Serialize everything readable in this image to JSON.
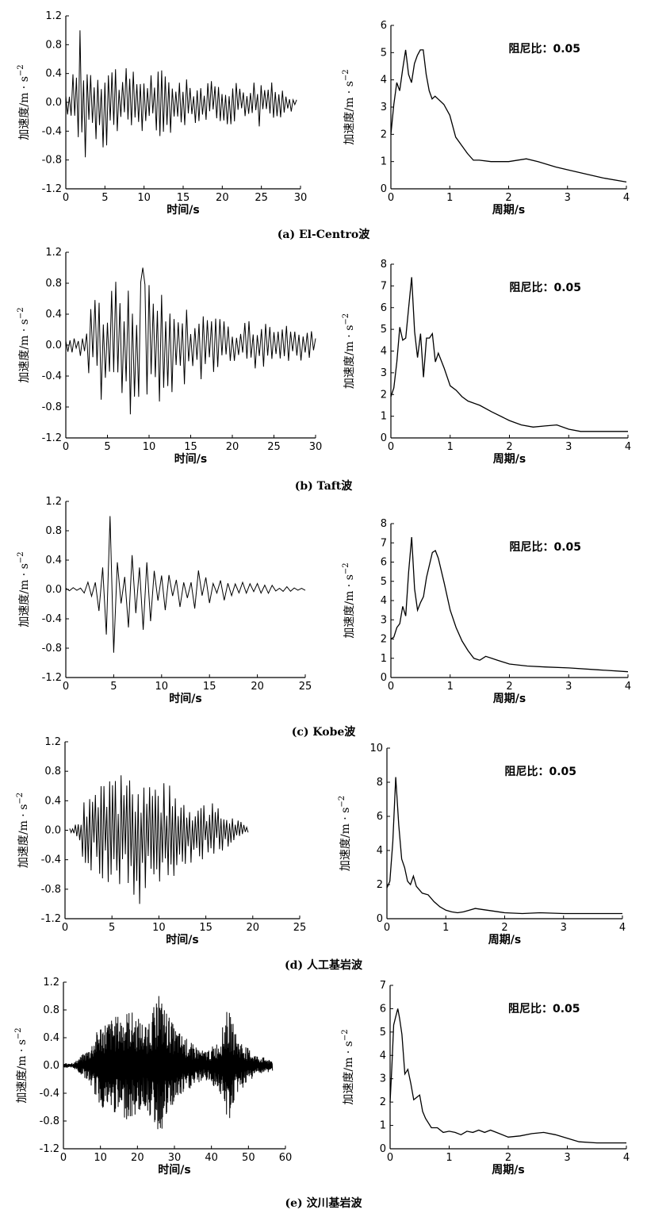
{
  "figure": {
    "captions": [
      "(a) El-Centro波",
      "(b) Taft波",
      "(c) Kobe波",
      "(d) 人工基岩波",
      "(e) 汶川基岩波"
    ]
  },
  "common": {
    "time_xlabel": "时间/s",
    "period_xlabel": "周期/s",
    "ylabel": "加速度/m · s",
    "ylabel_exp": "−2",
    "damping_label": "阻尼比：0.05"
  },
  "chart_data": [
    {
      "id": "a-time",
      "type": "line",
      "xlabel": "时间/s",
      "ylabel": "加速度/m · s−2",
      "xlim": [
        0,
        30
      ],
      "ylim": [
        -1.2,
        1.2
      ],
      "xticks": [
        0,
        5,
        10,
        15,
        20,
        25,
        30
      ],
      "yticks": [
        -1.2,
        -0.8,
        -0.4,
        0.0,
        0.4,
        0.8,
        1.2
      ],
      "envelope": {
        "t": [
          0,
          1,
          2,
          3,
          5,
          8,
          12,
          16,
          20,
          25,
          28,
          29.5
        ],
        "a": [
          0.1,
          0.45,
          1.0,
          0.6,
          0.7,
          0.45,
          0.5,
          0.3,
          0.3,
          0.35,
          0.2,
          0.1
        ]
      },
      "duration": 29.5,
      "freq": 2.2,
      "peak": {
        "t": 1.9,
        "a": 1.0
      }
    },
    {
      "id": "a-spec",
      "type": "line",
      "xlabel": "周期/s",
      "ylabel": "加速度/m · s−2",
      "xlim": [
        0,
        4
      ],
      "ylim": [
        0,
        6
      ],
      "xticks": [
        0,
        1,
        2,
        3,
        4
      ],
      "yticks": [
        0,
        1,
        2,
        3,
        4,
        5,
        6
      ],
      "annotation": "阻尼比：0.05",
      "x": [
        0.0,
        0.05,
        0.1,
        0.15,
        0.2,
        0.25,
        0.3,
        0.35,
        0.4,
        0.45,
        0.5,
        0.55,
        0.6,
        0.65,
        0.7,
        0.75,
        0.8,
        0.85,
        0.9,
        1.0,
        1.1,
        1.2,
        1.3,
        1.4,
        1.5,
        1.7,
        2.0,
        2.3,
        2.5,
        2.8,
        3.0,
        3.3,
        3.6,
        4.0
      ],
      "y": [
        2.0,
        3.1,
        3.9,
        3.6,
        4.4,
        5.1,
        4.2,
        3.9,
        4.6,
        4.9,
        5.1,
        5.1,
        4.2,
        3.6,
        3.3,
        3.4,
        3.3,
        3.2,
        3.1,
        2.7,
        1.9,
        1.6,
        1.3,
        1.05,
        1.05,
        1.0,
        1.0,
        1.1,
        1.0,
        0.8,
        0.7,
        0.55,
        0.4,
        0.25
      ]
    },
    {
      "id": "b-time",
      "type": "line",
      "xlabel": "时间/s",
      "ylabel": "加速度/m · s−2",
      "xlim": [
        0,
        30
      ],
      "ylim": [
        -1.2,
        1.2
      ],
      "xticks": [
        0,
        5,
        10,
        15,
        20,
        25,
        30
      ],
      "yticks": [
        -1.2,
        -0.8,
        -0.4,
        0.0,
        0.4,
        0.8,
        1.2
      ],
      "envelope": {
        "t": [
          0,
          2,
          4,
          6,
          9,
          12,
          15,
          18,
          22,
          26,
          29,
          30
        ],
        "a": [
          0.1,
          0.15,
          0.8,
          0.9,
          1.0,
          0.7,
          0.5,
          0.4,
          0.35,
          0.25,
          0.3,
          0.1
        ]
      },
      "duration": 30,
      "freq": 2.0,
      "peak": {
        "t": 9.3,
        "a": 1.0
      }
    },
    {
      "id": "b-spec",
      "type": "line",
      "xlabel": "周期/s",
      "ylabel": "加速度/m · s−2",
      "xlim": [
        0,
        4
      ],
      "ylim": [
        0,
        8
      ],
      "xticks": [
        0,
        1,
        2,
        3,
        4
      ],
      "yticks": [
        0,
        1,
        2,
        3,
        4,
        5,
        6,
        7,
        8
      ],
      "annotation": "阻尼比：0.05",
      "x": [
        0.0,
        0.05,
        0.1,
        0.15,
        0.2,
        0.25,
        0.3,
        0.35,
        0.4,
        0.45,
        0.5,
        0.55,
        0.6,
        0.65,
        0.7,
        0.75,
        0.8,
        0.9,
        1.0,
        1.1,
        1.2,
        1.3,
        1.5,
        1.7,
        2.0,
        2.2,
        2.4,
        2.6,
        2.8,
        3.0,
        3.2,
        3.5,
        4.0
      ],
      "y": [
        1.9,
        2.3,
        3.5,
        5.1,
        4.5,
        4.6,
        6.0,
        7.4,
        4.9,
        3.7,
        4.8,
        2.8,
        4.6,
        4.6,
        4.8,
        3.5,
        3.9,
        3.2,
        2.4,
        2.2,
        1.9,
        1.7,
        1.5,
        1.2,
        0.8,
        0.6,
        0.5,
        0.55,
        0.6,
        0.4,
        0.3,
        0.3,
        0.3
      ]
    },
    {
      "id": "c-time",
      "type": "line",
      "xlabel": "时间/s",
      "ylabel": "加速度/m · s−2",
      "xlim": [
        0,
        25
      ],
      "ylim": [
        -1.2,
        1.2
      ],
      "xticks": [
        0,
        5,
        10,
        15,
        20,
        25
      ],
      "yticks": [
        -1.2,
        -0.8,
        -0.4,
        0.0,
        0.4,
        0.8,
        1.2
      ],
      "envelope": {
        "t": [
          0,
          2,
          3.5,
          4.8,
          6,
          7,
          8.2,
          9.5,
          11,
          13,
          15,
          17,
          19,
          22,
          25
        ],
        "a": [
          0.02,
          0.05,
          0.3,
          1.0,
          0.6,
          0.5,
          0.9,
          0.4,
          0.3,
          0.35,
          0.2,
          0.15,
          0.1,
          0.05,
          0.03
        ]
      },
      "duration": 25,
      "freq": 1.3,
      "peak": {
        "t": 4.7,
        "a": 1.0
      }
    },
    {
      "id": "c-spec",
      "type": "line",
      "xlabel": "周期/s",
      "ylabel": "加速度/m · s−2",
      "xlim": [
        0,
        4
      ],
      "ylim": [
        0,
        8
      ],
      "xticks": [
        0,
        1,
        2,
        3,
        4
      ],
      "yticks": [
        0,
        1,
        2,
        3,
        4,
        5,
        6,
        7,
        8
      ],
      "annotation": "阻尼比：0.05",
      "x": [
        0.0,
        0.05,
        0.1,
        0.15,
        0.2,
        0.25,
        0.3,
        0.35,
        0.4,
        0.45,
        0.5,
        0.55,
        0.6,
        0.7,
        0.75,
        0.8,
        0.9,
        1.0,
        1.1,
        1.2,
        1.3,
        1.4,
        1.5,
        1.6,
        1.7,
        1.8,
        2.0,
        2.3,
        2.6,
        3.0,
        3.5,
        4.0
      ],
      "y": [
        2.0,
        2.1,
        2.6,
        2.8,
        3.7,
        3.2,
        5.5,
        7.3,
        4.6,
        3.5,
        3.9,
        4.2,
        5.2,
        6.5,
        6.6,
        6.2,
        4.9,
        3.5,
        2.6,
        1.9,
        1.4,
        1.0,
        0.9,
        1.1,
        1.0,
        0.9,
        0.7,
        0.6,
        0.55,
        0.5,
        0.4,
        0.3
      ]
    },
    {
      "id": "d-time",
      "type": "line",
      "xlabel": "时间/s",
      "ylabel": "加速度/m · s−2",
      "xlim": [
        0,
        25
      ],
      "ylim": [
        -1.2,
        1.2
      ],
      "xticks": [
        0,
        5,
        10,
        15,
        20,
        25
      ],
      "yticks": [
        -1.2,
        -0.8,
        -0.4,
        0.0,
        0.4,
        0.8,
        1.2
      ],
      "envelope": {
        "t": [
          0.5,
          1.5,
          2,
          4,
          6,
          8,
          10,
          12,
          14,
          16,
          18,
          19.5
        ],
        "a": [
          0.05,
          0.1,
          0.5,
          0.7,
          0.75,
          0.95,
          0.75,
          0.6,
          0.5,
          0.35,
          0.2,
          0.05
        ]
      },
      "duration": 19.5,
      "start": 0.5,
      "freq": 3.3,
      "peak": {
        "t": 7.9,
        "a": -1.0
      }
    },
    {
      "id": "d-spec",
      "type": "line",
      "xlabel": "周期/s",
      "ylabel": "加速度/m · s−2",
      "xlim": [
        0,
        4
      ],
      "ylim": [
        0,
        10
      ],
      "xticks": [
        0,
        1,
        2,
        3,
        4
      ],
      "yticks": [
        0,
        2,
        4,
        6,
        8,
        10
      ],
      "annotation": "阻尼比：0.05",
      "x": [
        0.0,
        0.05,
        0.1,
        0.15,
        0.2,
        0.25,
        0.3,
        0.35,
        0.4,
        0.45,
        0.5,
        0.6,
        0.7,
        0.8,
        0.9,
        1.0,
        1.1,
        1.2,
        1.3,
        1.4,
        1.5,
        1.6,
        1.8,
        2.0,
        2.3,
        2.6,
        3.0,
        3.5,
        4.0
      ],
      "y": [
        1.8,
        2.2,
        4.5,
        8.3,
        5.5,
        3.5,
        3.0,
        2.2,
        2.0,
        2.5,
        1.9,
        1.5,
        1.4,
        1.0,
        0.7,
        0.5,
        0.4,
        0.35,
        0.4,
        0.5,
        0.6,
        0.55,
        0.45,
        0.35,
        0.3,
        0.35,
        0.3,
        0.3,
        0.3
      ]
    },
    {
      "id": "e-time",
      "type": "line",
      "xlabel": "时间/s",
      "ylabel": "加速度/m · s−2",
      "xlim": [
        0,
        60
      ],
      "ylim": [
        -1.2,
        1.2
      ],
      "xticks": [
        0,
        10,
        20,
        30,
        40,
        50,
        60
      ],
      "yticks": [
        -1.2,
        -0.8,
        -0.4,
        0.0,
        0.4,
        0.8,
        1.2
      ],
      "envelope": {
        "t": [
          0,
          3,
          7,
          10,
          14,
          18,
          22,
          26,
          30,
          34,
          38,
          42,
          44.5,
          47,
          52,
          56.5
        ],
        "a": [
          0.03,
          0.05,
          0.25,
          0.6,
          0.7,
          0.8,
          0.6,
          1.0,
          0.55,
          0.35,
          0.2,
          0.35,
          0.85,
          0.4,
          0.15,
          0.08
        ]
      },
      "duration": 56.5,
      "freq": 7.0,
      "peak": {
        "t": 25.8,
        "a": 1.0
      }
    },
    {
      "id": "e-spec",
      "type": "line",
      "xlabel": "周期/s",
      "ylabel": "加速度/m · s−2",
      "xlim": [
        0,
        4
      ],
      "ylim": [
        0,
        7
      ],
      "xticks": [
        0,
        1,
        2,
        3,
        4
      ],
      "yticks": [
        0,
        1,
        2,
        3,
        4,
        5,
        6,
        7
      ],
      "annotation": "阻尼比：0.05",
      "x": [
        0.0,
        0.03,
        0.06,
        0.1,
        0.13,
        0.16,
        0.2,
        0.25,
        0.3,
        0.35,
        0.4,
        0.45,
        0.5,
        0.55,
        0.6,
        0.7,
        0.8,
        0.9,
        1.0,
        1.1,
        1.2,
        1.3,
        1.4,
        1.5,
        1.6,
        1.7,
        1.8,
        2.0,
        2.2,
        2.4,
        2.6,
        2.8,
        3.0,
        3.2,
        3.5,
        4.0
      ],
      "y": [
        2.0,
        3.5,
        5.3,
        5.7,
        6.0,
        5.6,
        4.9,
        3.2,
        3.4,
        2.8,
        2.1,
        2.2,
        2.3,
        1.6,
        1.3,
        0.9,
        0.9,
        0.7,
        0.75,
        0.7,
        0.6,
        0.75,
        0.7,
        0.8,
        0.7,
        0.8,
        0.7,
        0.5,
        0.55,
        0.65,
        0.7,
        0.6,
        0.45,
        0.3,
        0.25,
        0.25
      ]
    }
  ]
}
